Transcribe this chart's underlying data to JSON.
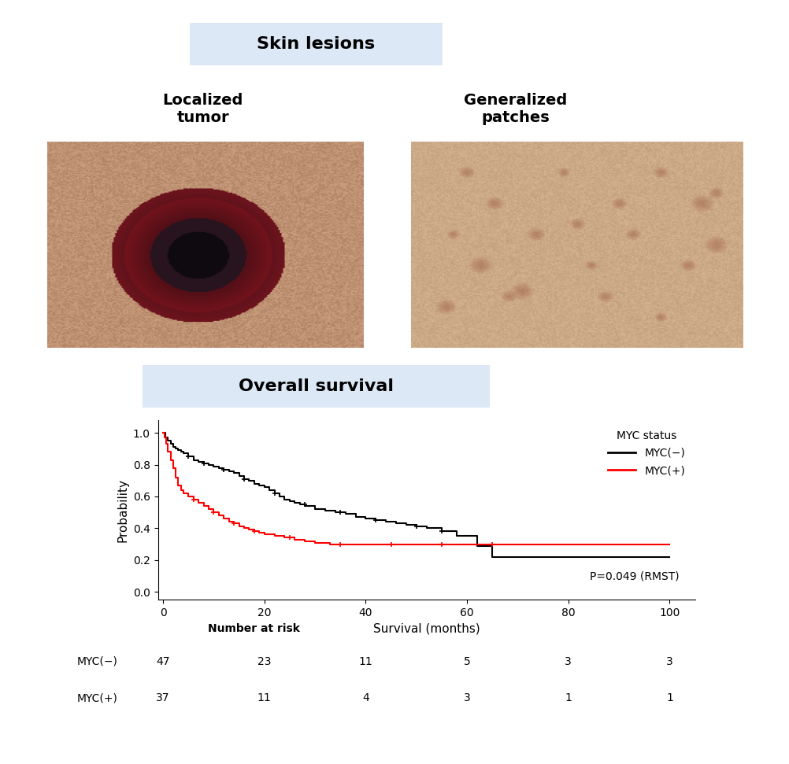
{
  "title_skin": "Skin lesions",
  "label_left": "Localized\ntumor",
  "label_right": "Generalized\npatches",
  "title_survival": "Overall survival",
  "header_bg_color": "#dce8f5",
  "ylabel": "Probability",
  "xlabel": "Survival (months)",
  "yticks": [
    0.0,
    0.2,
    0.4,
    0.6,
    0.8,
    1.0
  ],
  "xticks": [
    0,
    20,
    40,
    60,
    80,
    100
  ],
  "xlim": [
    -1,
    105
  ],
  "ylim": [
    -0.05,
    1.08
  ],
  "legend_title": "MYC status",
  "legend_neg": "MYC(−)",
  "legend_pos": "MYC(+)",
  "pvalue_text": "P=0.049 (RMST)",
  "color_neg": "#000000",
  "color_pos": "#ff0000",
  "risk_header": "Number at risk",
  "risk_labels": [
    "MYC(−)",
    "MYC(+)"
  ],
  "risk_neg": [
    47,
    23,
    11,
    5,
    3,
    3
  ],
  "risk_pos": [
    37,
    11,
    4,
    3,
    1,
    1
  ],
  "risk_timepoints": [
    0,
    20,
    40,
    60,
    80,
    100
  ],
  "neg_times": [
    0,
    0.5,
    1,
    1.5,
    2,
    2.5,
    3,
    3.5,
    4,
    5,
    6,
    7,
    8,
    9,
    10,
    11,
    12,
    13,
    14,
    15,
    16,
    17,
    18,
    19,
    20,
    21,
    22,
    23,
    24,
    25,
    26,
    27,
    28,
    30,
    32,
    34,
    36,
    38,
    40,
    42,
    44,
    46,
    48,
    50,
    52,
    55,
    58,
    62,
    65,
    100
  ],
  "neg_surv": [
    1.0,
    0.97,
    0.95,
    0.93,
    0.91,
    0.9,
    0.89,
    0.88,
    0.87,
    0.85,
    0.83,
    0.82,
    0.81,
    0.8,
    0.79,
    0.78,
    0.77,
    0.76,
    0.75,
    0.73,
    0.71,
    0.7,
    0.68,
    0.67,
    0.66,
    0.64,
    0.62,
    0.6,
    0.58,
    0.57,
    0.56,
    0.55,
    0.54,
    0.52,
    0.51,
    0.5,
    0.49,
    0.47,
    0.46,
    0.45,
    0.44,
    0.43,
    0.42,
    0.41,
    0.4,
    0.38,
    0.35,
    0.29,
    0.22,
    0.22
  ],
  "pos_times": [
    0,
    0.3,
    0.6,
    1.0,
    1.5,
    2.0,
    2.5,
    3.0,
    3.5,
    4.0,
    5.0,
    6.0,
    7.0,
    8.0,
    9.0,
    10.0,
    11.0,
    12.0,
    13.0,
    14.0,
    15.0,
    16.0,
    17.0,
    18.0,
    19.0,
    20.0,
    22.0,
    24.0,
    26.0,
    28.0,
    30.0,
    33.0,
    36.0,
    38.0,
    40.0,
    42.0,
    45.0,
    50.0,
    55.0,
    60.0,
    100.0
  ],
  "pos_surv": [
    1.0,
    0.97,
    0.93,
    0.88,
    0.83,
    0.78,
    0.72,
    0.67,
    0.64,
    0.62,
    0.6,
    0.58,
    0.56,
    0.54,
    0.52,
    0.5,
    0.48,
    0.46,
    0.44,
    0.43,
    0.41,
    0.4,
    0.39,
    0.38,
    0.37,
    0.36,
    0.35,
    0.34,
    0.33,
    0.32,
    0.31,
    0.3,
    0.3,
    0.3,
    0.3,
    0.3,
    0.3,
    0.3,
    0.3,
    0.3,
    0.3
  ],
  "neg_censor_times": [
    5,
    8,
    12,
    16,
    22,
    28,
    35,
    42,
    50,
    55
  ],
  "neg_censor_surv": [
    0.85,
    0.81,
    0.77,
    0.71,
    0.62,
    0.55,
    0.5,
    0.45,
    0.41,
    0.38
  ],
  "pos_censor_times": [
    6,
    10,
    14,
    18,
    25,
    35,
    45,
    55,
    65
  ],
  "pos_censor_surv": [
    0.58,
    0.5,
    0.43,
    0.38,
    0.34,
    0.3,
    0.3,
    0.3,
    0.3
  ]
}
